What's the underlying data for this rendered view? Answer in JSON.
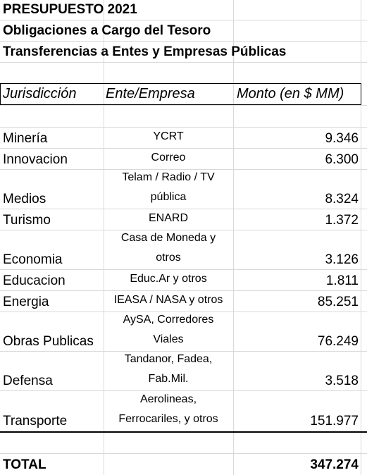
{
  "titles": [
    "PRESUPUESTO 2021",
    "Obligaciones a Cargo del Tesoro",
    "Transferencias a Entes y Empresas Públicas"
  ],
  "headers": {
    "jurisdiccion": "Jurisdicción",
    "ente": "Ente/Empresa",
    "monto": "Monto (en $ MM)"
  },
  "rows": [
    {
      "jurisdiccion": "Minería",
      "ente": [
        "YCRT"
      ],
      "monto": "9.346"
    },
    {
      "jurisdiccion": "Innovacion",
      "ente": [
        "Correo"
      ],
      "monto": "6.300"
    },
    {
      "jurisdiccion": "Medios",
      "ente": [
        "Telam / Radio / TV",
        "pública"
      ],
      "monto": "8.324"
    },
    {
      "jurisdiccion": "Turismo",
      "ente": [
        "ENARD"
      ],
      "monto": "1.372"
    },
    {
      "jurisdiccion": "Economia",
      "ente": [
        "Casa de Moneda y",
        "otros"
      ],
      "monto": "3.126"
    },
    {
      "jurisdiccion": "Educacion",
      "ente": [
        "Educ.Ar y otros"
      ],
      "monto": "1.811"
    },
    {
      "jurisdiccion": "Energia",
      "ente": [
        "IEASA / NASA y otros"
      ],
      "monto": "85.251"
    },
    {
      "jurisdiccion": "Obras Publicas",
      "ente": [
        "AySA, Corredores",
        "Viales"
      ],
      "monto": "76.249"
    },
    {
      "jurisdiccion": "Defensa",
      "ente": [
        "Tandanor, Fadea,",
        "Fab.Mil."
      ],
      "monto": "3.518"
    },
    {
      "jurisdiccion": "Transporte",
      "ente": [
        "Aerolineas,",
        "Ferrocariles, y otros"
      ],
      "monto": "151.977"
    }
  ],
  "total": {
    "label": "TOTAL",
    "monto": "347.274"
  }
}
